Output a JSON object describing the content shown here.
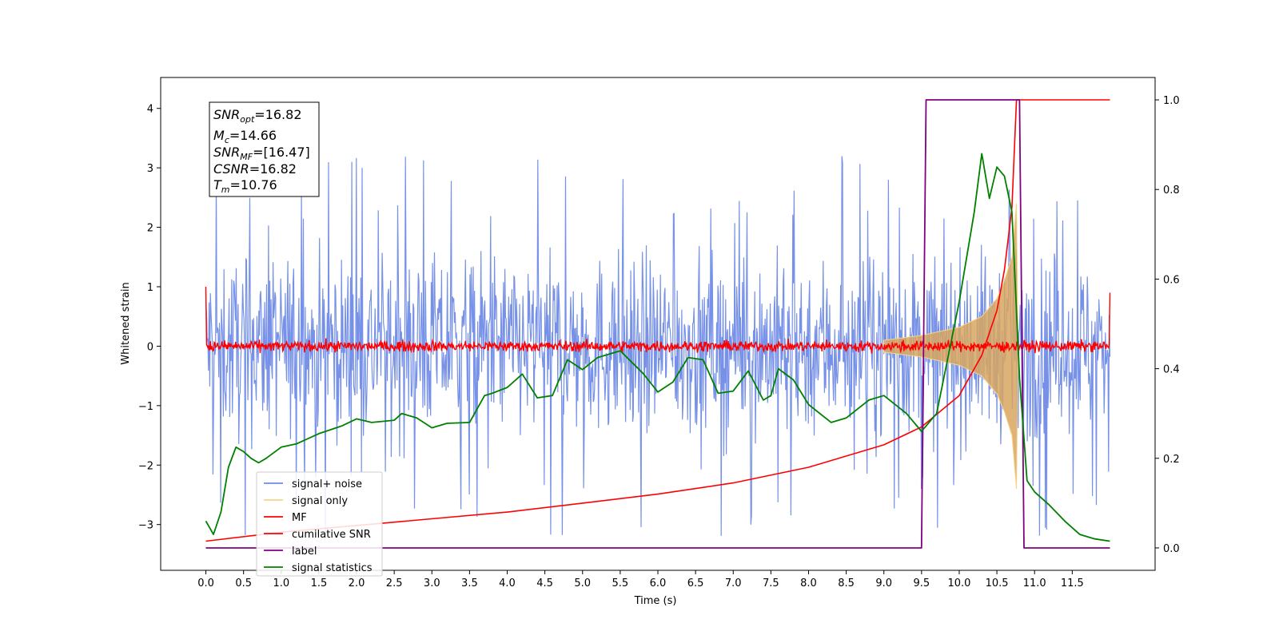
{
  "chart_data": {
    "type": "line",
    "xlabel": "Time (s)",
    "ylabel": "Whitened strain",
    "xlim": [
      -0.6,
      12.6
    ],
    "ylim": [
      -3.77,
      4.52
    ],
    "y2lim": [
      -0.05,
      1.05
    ],
    "xticks": [
      "0.0",
      "0.5",
      "1.0",
      "1.5",
      "2.0",
      "2.5",
      "3.0",
      "3.5",
      "4.0",
      "4.5",
      "5.0",
      "5.5",
      "6.0",
      "6.5",
      "7.0",
      "7.5",
      "8.0",
      "8.5",
      "9.0",
      "9.5",
      "10.0",
      "10.5",
      "11.0",
      "11.5"
    ],
    "yticks": [
      "−3",
      "−2",
      "−1",
      "0",
      "1",
      "2",
      "3",
      "4"
    ],
    "y2ticks": [
      "0.0",
      "0.2",
      "0.4",
      "0.6",
      "0.8",
      "1.0"
    ],
    "annotation": {
      "snr_opt": "=16.82",
      "mc": "=14.66",
      "snr_mf": "=[16.47]",
      "csnr": "=16.82",
      "tm": "=10.76"
    },
    "legend": {
      "placement": "lower-left",
      "entries": [
        {
          "label": "signal+ noise",
          "color": "#6f8be6"
        },
        {
          "label": "signal only",
          "color": "#f5d48a"
        },
        {
          "label": "MF",
          "color": "#ff0000"
        },
        {
          "label": "cumilative SNR",
          "color": "#ff0000"
        },
        {
          "label": "label",
          "color": "#800080"
        },
        {
          "label": "signal statistics",
          "color": "#008000"
        }
      ]
    },
    "series": [
      {
        "name": "signal+ noise",
        "axis": "left",
        "color": "#6f8be6",
        "note_values": "noise band approx ±1.5 with peaks to ±3.2 across t=0 to 12"
      },
      {
        "name": "signal only",
        "axis": "left",
        "color": "#f5d48a",
        "envelope_t": [
          9.0,
          9.5,
          10.0,
          10.3,
          10.5,
          10.6,
          10.7,
          10.76,
          10.78
        ],
        "envelope_amp": [
          0.1,
          0.18,
          0.32,
          0.5,
          0.8,
          1.1,
          1.5,
          2.4,
          0
        ]
      },
      {
        "name": "MF",
        "axis": "left",
        "color": "#ff0000",
        "level": 0.0,
        "noise_amp": 0.09,
        "start_value": 1.0,
        "end_value": 0.9
      },
      {
        "name": "cumilative SNR",
        "axis": "right",
        "color": "#ff0000",
        "t": [
          0.0,
          1.0,
          2.0,
          3.0,
          4.0,
          5.0,
          6.0,
          7.0,
          8.0,
          9.0,
          9.5,
          10.0,
          10.3,
          10.5,
          10.6,
          10.7,
          10.76,
          10.77,
          12.0
        ],
        "values": [
          0.015,
          0.035,
          0.05,
          0.065,
          0.08,
          0.1,
          0.12,
          0.145,
          0.18,
          0.23,
          0.27,
          0.34,
          0.43,
          0.53,
          0.62,
          0.76,
          1.0,
          1.0,
          1.0
        ]
      },
      {
        "name": "label",
        "axis": "right",
        "color": "#800080",
        "t": [
          0.0,
          9.5,
          9.56,
          10.8,
          10.86,
          12.0
        ],
        "values": [
          0.0,
          0.0,
          1.0,
          1.0,
          0.0,
          0.0
        ]
      },
      {
        "name": "signal statistics",
        "axis": "right",
        "color": "#008000",
        "t": [
          0.0,
          0.1,
          0.2,
          0.3,
          0.4,
          0.5,
          0.6,
          0.7,
          0.8,
          1.0,
          1.2,
          1.5,
          1.8,
          2.0,
          2.2,
          2.5,
          2.6,
          2.8,
          3.0,
          3.2,
          3.5,
          3.7,
          3.8,
          4.0,
          4.2,
          4.4,
          4.6,
          4.8,
          5.0,
          5.2,
          5.5,
          5.8,
          6.0,
          6.2,
          6.4,
          6.6,
          6.8,
          7.0,
          7.2,
          7.4,
          7.5,
          7.6,
          7.8,
          8.0,
          8.3,
          8.5,
          8.8,
          9.0,
          9.3,
          9.5,
          9.7,
          10.0,
          10.2,
          10.3,
          10.4,
          10.5,
          10.6,
          10.7,
          10.8,
          10.9,
          11.0,
          11.2,
          11.4,
          11.6,
          11.8,
          12.0
        ],
        "values": [
          0.06,
          0.03,
          0.08,
          0.18,
          0.225,
          0.215,
          0.2,
          0.19,
          0.2,
          0.225,
          0.232,
          0.255,
          0.272,
          0.288,
          0.28,
          0.285,
          0.3,
          0.29,
          0.268,
          0.278,
          0.28,
          0.34,
          0.345,
          0.358,
          0.388,
          0.335,
          0.34,
          0.42,
          0.398,
          0.425,
          0.44,
          0.39,
          0.348,
          0.37,
          0.425,
          0.42,
          0.345,
          0.35,
          0.395,
          0.33,
          0.34,
          0.4,
          0.375,
          0.32,
          0.28,
          0.29,
          0.33,
          0.34,
          0.3,
          0.26,
          0.3,
          0.55,
          0.75,
          0.88,
          0.78,
          0.85,
          0.83,
          0.75,
          0.38,
          0.15,
          0.125,
          0.095,
          0.06,
          0.03,
          0.02,
          0.015
        ]
      }
    ]
  }
}
